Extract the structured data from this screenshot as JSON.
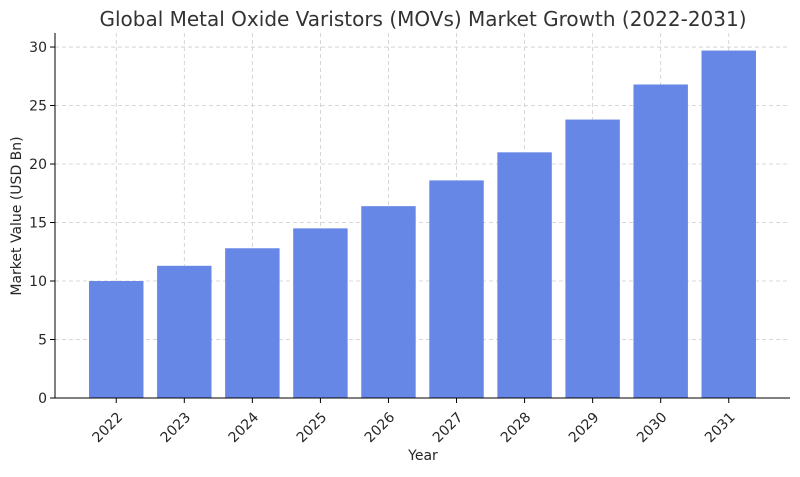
{
  "chart_data": {
    "type": "bar",
    "title": "Global Metal Oxide Varistors (MOVs) Market Growth (2022-2031)",
    "xlabel": "Year",
    "ylabel": "Market Value (USD Bn)",
    "categories": [
      "2022",
      "2023",
      "2024",
      "2025",
      "2026",
      "2027",
      "2028",
      "2029",
      "2030",
      "2031"
    ],
    "values": [
      10.0,
      11.3,
      12.8,
      14.5,
      16.4,
      18.6,
      21.0,
      23.8,
      26.8,
      29.7
    ],
    "ylim": [
      0,
      31.2
    ],
    "yticks": [
      0,
      5,
      10,
      15,
      20,
      25,
      30
    ],
    "grid": true,
    "bar_color": "#6787e7",
    "xtick_rotation": -45
  }
}
